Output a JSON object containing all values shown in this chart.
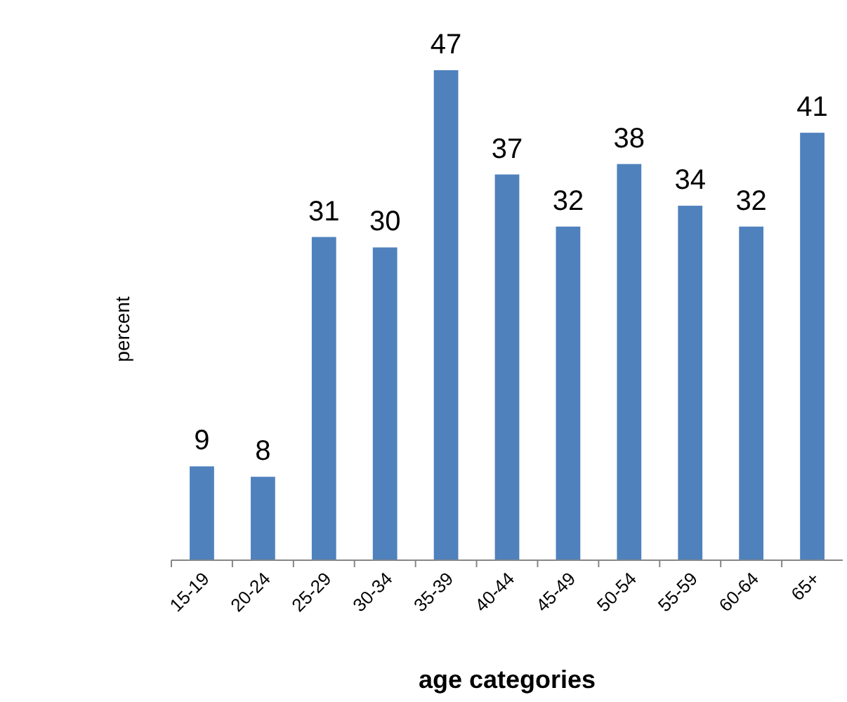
{
  "chart_data": {
    "type": "bar",
    "xlabel": "age categories",
    "ylabel": "percent",
    "categories": [
      "15-19",
      "20-24",
      "25-29",
      "30-34",
      "35-39",
      "40-44",
      "45-49",
      "50-54",
      "55-59",
      "60-64",
      "65+"
    ],
    "values": [
      9,
      8,
      31,
      30,
      47,
      37,
      32,
      38,
      34,
      32,
      41
    ],
    "color": "#4f81bd",
    "data_labels": true
  }
}
